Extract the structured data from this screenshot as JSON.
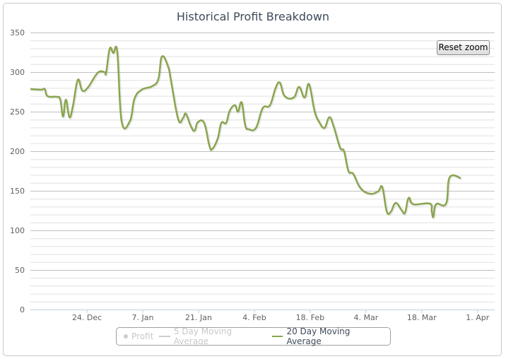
{
  "chart_data": {
    "type": "line",
    "title": "Historical Profit Breakdown",
    "xlabel": "",
    "ylabel": "",
    "x_unit": "days since 24. Dec",
    "xlim": [
      -14.2,
      102.3
    ],
    "ylim": [
      0,
      350
    ],
    "y_ticks": [
      0,
      50,
      100,
      150,
      200,
      250,
      300,
      350
    ],
    "y_minor_step": 10,
    "x_ticks": [
      {
        "day": 0,
        "label": "24. Dec"
      },
      {
        "day": 14,
        "label": "7. Jan"
      },
      {
        "day": 28,
        "label": "21. Jan"
      },
      {
        "day": 42,
        "label": "4. Feb"
      },
      {
        "day": 56,
        "label": "18. Feb"
      },
      {
        "day": 70,
        "label": "4. Mar"
      },
      {
        "day": 84,
        "label": "18. Mar"
      },
      {
        "day": 98,
        "label": "1. Apr"
      }
    ],
    "grid": true,
    "legend_position": "bottom-center",
    "series": [
      {
        "name": "Profit",
        "visible": false,
        "color": "#cccccc",
        "points": []
      },
      {
        "name": "5 Day Moving Average",
        "visible": false,
        "color": "#cccccc",
        "points": []
      },
      {
        "name": "20 Day Moving Average",
        "visible": true,
        "color": "#89a54e",
        "points": [
          [
            -14.2,
            278.6
          ],
          [
            -11.5,
            277.7
          ],
          [
            -10.6,
            278.6
          ],
          [
            -9.9,
            269.6
          ],
          [
            -7.6,
            268.8
          ],
          [
            -6.7,
            265.2
          ],
          [
            -6.0,
            243.8
          ],
          [
            -5.3,
            265.2
          ],
          [
            -4.4,
            242.9
          ],
          [
            -3.5,
            258.0
          ],
          [
            -2.3,
            290.2
          ],
          [
            -1.2,
            276.8
          ],
          [
            0.2,
            280.4
          ],
          [
            2.7,
            299.1
          ],
          [
            4.4,
            300.0
          ],
          [
            4.8,
            299.1
          ],
          [
            5.7,
            329.5
          ],
          [
            6.6,
            324.1
          ],
          [
            7.6,
            325.0
          ],
          [
            8.7,
            237.5
          ],
          [
            10.8,
            238.4
          ],
          [
            11.9,
            266.1
          ],
          [
            13.7,
            277.7
          ],
          [
            16.3,
            282.1
          ],
          [
            17.9,
            291.1
          ],
          [
            18.8,
            319.6
          ],
          [
            20.4,
            306.3
          ],
          [
            21.1,
            288.4
          ],
          [
            22.9,
            240.2
          ],
          [
            24.1,
            242.0
          ],
          [
            24.8,
            247.3
          ],
          [
            26.1,
            231.3
          ],
          [
            27.0,
            225.9
          ],
          [
            27.8,
            236.6
          ],
          [
            29.4,
            235.7
          ],
          [
            30.7,
            207.1
          ],
          [
            31.4,
            202.7
          ],
          [
            32.8,
            216.1
          ],
          [
            33.7,
            235.7
          ],
          [
            34.9,
            235.7
          ],
          [
            35.8,
            250.9
          ],
          [
            37.1,
            258.0
          ],
          [
            37.9,
            250.0
          ],
          [
            38.8,
            261.6
          ],
          [
            39.7,
            233.0
          ],
          [
            40.6,
            227.7
          ],
          [
            42.4,
            229.5
          ],
          [
            44.1,
            254.5
          ],
          [
            45.9,
            258.0
          ],
          [
            47.3,
            279.5
          ],
          [
            48.4,
            286.6
          ],
          [
            49.6,
            269.6
          ],
          [
            51.9,
            267.9
          ],
          [
            53.2,
            281.3
          ],
          [
            54.6,
            267.9
          ],
          [
            55.7,
            284.8
          ],
          [
            57.1,
            250.9
          ],
          [
            58.3,
            236.6
          ],
          [
            59.6,
            229.5
          ],
          [
            60.8,
            242.9
          ],
          [
            61.9,
            231.3
          ],
          [
            63.5,
            204.5
          ],
          [
            64.5,
            200.0
          ],
          [
            65.6,
            175.0
          ],
          [
            66.8,
            171.4
          ],
          [
            68.6,
            153.6
          ],
          [
            70.9,
            146.4
          ],
          [
            73.0,
            149.1
          ],
          [
            74.1,
            154.5
          ],
          [
            75.2,
            124.1
          ],
          [
            76.2,
            123.2
          ],
          [
            77.1,
            133.0
          ],
          [
            77.8,
            133.9
          ],
          [
            78.9,
            125.9
          ],
          [
            79.8,
            122.3
          ],
          [
            80.7,
            141.1
          ],
          [
            81.9,
            133.0
          ],
          [
            86.0,
            133.9
          ],
          [
            86.5,
            124.1
          ],
          [
            86.9,
            117.0
          ],
          [
            87.6,
            133.0
          ],
          [
            90.1,
            133.9
          ],
          [
            91.0,
            167.0
          ],
          [
            93.8,
            166.1
          ]
        ]
      }
    ]
  },
  "controls": {
    "reset_zoom_label": "Reset zoom"
  }
}
